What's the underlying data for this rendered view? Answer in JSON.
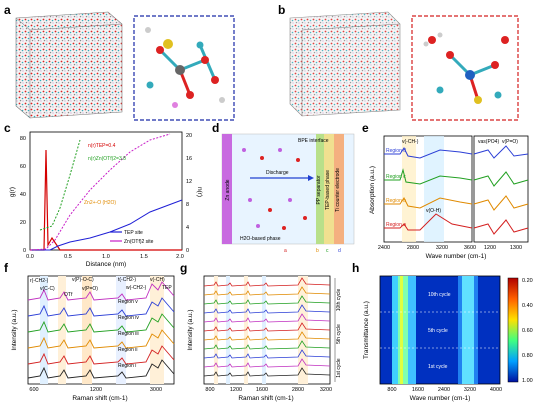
{
  "panels": {
    "a": {
      "label": "a"
    },
    "b": {
      "label": "b"
    },
    "c": {
      "label": "c",
      "ylabel_left": "g(r)",
      "ylabel_right": "n(r)",
      "xlabel": "Distance (nm)",
      "yticks_left": [
        "0",
        "20",
        "40",
        "60",
        "80"
      ],
      "yticks_right": [
        "0",
        "4",
        "8",
        "12",
        "16",
        "20"
      ],
      "xticks": [
        "0.0",
        "0.5",
        "1.0",
        "1.5",
        "2.0"
      ],
      "annot1": "n(r)TEP=0.4",
      "annot2": "n(r)Zn(OTf)2=3.8",
      "annot3": "Zn2+-O (H2O)",
      "legend": [
        "TEP site",
        "Zn(OTf)2 site"
      ],
      "colors": {
        "tep": "#1f1fd6",
        "zn": "#c81ec8",
        "red": "#d40000",
        "green": "#22a022"
      }
    },
    "d": {
      "label": "d",
      "zn_anode": "Zn anode",
      "bpe": "BPE interface",
      "discharge": "Discharge",
      "h2o_phase": "H2O-based phase",
      "pp_sep": "PP separator",
      "tep_phase": "TEP-based phase",
      "ti_counter": "Ti counter electrode",
      "markers": [
        "a",
        "b",
        "c",
        "d"
      ]
    },
    "e": {
      "label": "e",
      "ylabel": "Absorption (a.u.)",
      "xlabel": "Wave number (cm-1)",
      "regions": [
        "Region d",
        "Region c",
        "Region b",
        "Region a"
      ],
      "region_colors": [
        "#2c3fd6",
        "#22a022",
        "#e08a00",
        "#d42020"
      ],
      "xticks_left": [
        "2400",
        "2800",
        "3200",
        "3600"
      ],
      "xticks_right": [
        "1200",
        "1300"
      ],
      "peak1": "v(-CH-)",
      "peak2": "v(O-H)",
      "peak3": "vas(PO4)",
      "peak4": "v(P=O)"
    },
    "f": {
      "label": "f",
      "ylabel": "Intensity (a.u.)",
      "xlabel": "Raman shift (cm-1)",
      "xticks": [
        "600",
        "1200",
        "3000"
      ],
      "regions": [
        "Region v",
        "Region iv",
        "Region iii",
        "Region ii",
        "Region i"
      ],
      "annots": [
        "r(-CH2-)",
        "v(P)-O-C)",
        "v(C-C)",
        "OTf",
        "v(P=O)",
        "t(-CH2-)",
        "w(-CH2-)",
        "v(-CH)",
        "TEP"
      ]
    },
    "g": {
      "label": "g",
      "ylabel": "Intensity (a.u.)",
      "xlabel": "Raman shift (cm-1)",
      "xticks": [
        "800",
        "1200",
        "1600",
        "2800",
        "3200"
      ],
      "cycles": [
        "10th cycle",
        "5th cycle",
        "1st cycle"
      ]
    },
    "h": {
      "label": "h",
      "ylabel": "Transmittance (a.u.)",
      "xlabel": "Wave number (cm-1)",
      "xticks": [
        "800",
        "1600",
        "2400",
        "3200",
        "4000"
      ],
      "cycles": [
        "10th cycle",
        "5th cycle",
        "1st cycle"
      ],
      "colorbar": [
        "0.20",
        "0.40",
        "0.60",
        "0.80",
        "1.00"
      ]
    }
  }
}
